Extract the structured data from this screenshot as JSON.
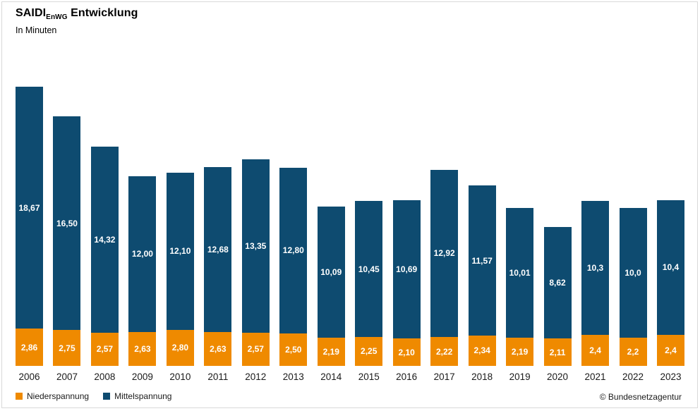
{
  "header": {
    "title_main": "SAIDI",
    "title_sub": "EnWG",
    "title_rest": " Entwicklung",
    "subtitle": "In Minuten"
  },
  "footer": {
    "copyright": "© Bundesnetzagentur"
  },
  "colors": {
    "niederspannung": "#EF8A00",
    "mittelspannung": "#0E4B70",
    "border": "#D9D9D9"
  },
  "chart_data": {
    "type": "bar",
    "stacked": true,
    "title": "SAIDI EnWG Entwicklung",
    "subtitle": "In Minuten",
    "xlabel": "",
    "ylabel": "Minuten",
    "ylim": [
      0,
      21.6
    ],
    "grid": false,
    "axes_visible": false,
    "legend_position": "bottom-left",
    "categories": [
      "2006",
      "2007",
      "2008",
      "2009",
      "2010",
      "2011",
      "2012",
      "2013",
      "2014",
      "2015",
      "2016",
      "2017",
      "2018",
      "2019",
      "2020",
      "2021",
      "2022",
      "2023"
    ],
    "series": [
      {
        "name": "Niederspannung",
        "color": "#EF8A00",
        "values": [
          2.86,
          2.75,
          2.57,
          2.63,
          2.8,
          2.63,
          2.57,
          2.5,
          2.19,
          2.25,
          2.1,
          2.22,
          2.34,
          2.19,
          2.11,
          2.4,
          2.2,
          2.4
        ],
        "labels": [
          "2,86",
          "2,75",
          "2,57",
          "2,63",
          "2,80",
          "2,63",
          "2,57",
          "2,50",
          "2,19",
          "2,25",
          "2,10",
          "2,22",
          "2,34",
          "2,19",
          "2,11",
          "2,4",
          "2,2",
          "2,4"
        ]
      },
      {
        "name": "Mittelspannung",
        "color": "#0E4B70",
        "values": [
          18.67,
          16.5,
          14.32,
          12.0,
          12.1,
          12.68,
          13.35,
          12.8,
          10.09,
          10.45,
          10.69,
          12.92,
          11.57,
          10.01,
          8.62,
          10.3,
          10.0,
          10.4
        ],
        "labels": [
          "18,67",
          "16,50",
          "14,32",
          "12,00",
          "12,10",
          "12,68",
          "13,35",
          "12,80",
          "10,09",
          "10,45",
          "10,69",
          "12,92",
          "11,57",
          "10,01",
          "8,62",
          "10,3",
          "10,0",
          "10,4"
        ]
      }
    ]
  }
}
